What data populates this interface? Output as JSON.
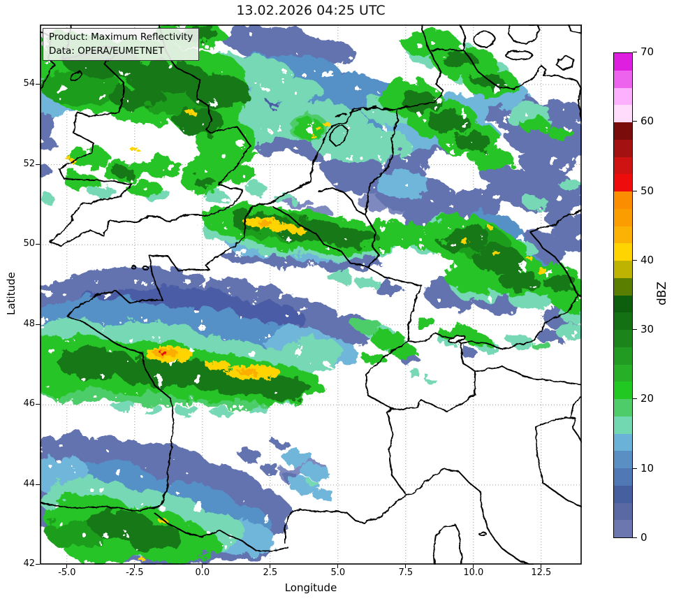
{
  "title": "13.02.2026 04:25 UTC",
  "product_box": {
    "line1": "Product: Maximum Reflectivity",
    "line2": "Data: OPERA/EUMETNET"
  },
  "axes": {
    "xlabel": "Longitude",
    "ylabel": "Latitude",
    "x_ticks": [
      "-5.0",
      "-2.5",
      "0.0",
      "2.5",
      "5.0",
      "7.5",
      "10.0",
      "12.5"
    ],
    "y_ticks": [
      "54",
      "52",
      "50",
      "48",
      "46",
      "44",
      "42"
    ],
    "x_range": [
      -6.0,
      14.0
    ],
    "y_range": [
      42.0,
      55.5
    ]
  },
  "colorbar": {
    "label": "dBZ",
    "ticks": [
      "70",
      "60",
      "50",
      "40",
      "30",
      "20",
      "10",
      "0"
    ],
    "min": 0,
    "max": 70,
    "step": 2.5,
    "colors": [
      "#6b77ae",
      "#5a68a4",
      "#46609f",
      "#4f78b4",
      "#5a8fc4",
      "#6ab2d8",
      "#72d8b2",
      "#4ecc6a",
      "#22c822",
      "#27af27",
      "#219b21",
      "#1b851b",
      "#137113",
      "#0d5f0d",
      "#5a7e00",
      "#bdb300",
      "#ffd400",
      "#fcb105",
      "#fb9d00",
      "#fa8e00",
      "#ee0c0c",
      "#cf1212",
      "#a31111",
      "#7a0c0c",
      "#ffdcfc",
      "#fdb0fd",
      "#ee63ee",
      "#df1fdf"
    ]
  }
}
